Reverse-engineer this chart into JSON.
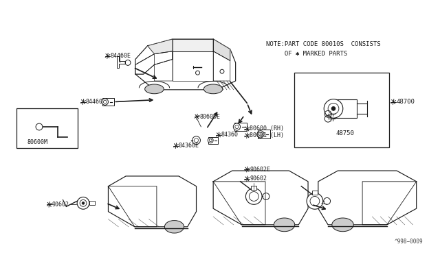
{
  "background_color": "#ffffff",
  "line_color": "#1a1a1a",
  "text_color": "#1a1a1a",
  "note_line1": "NOTE:PART CODE 80010S  CONSISTS",
  "note_line2": "     OF ✱ MARKED PARTS",
  "footer_text": "^998−0009",
  "figsize": [
    6.4,
    3.72
  ],
  "dpi": 100,
  "label_84460E": "✱84460E",
  "label_84460": "✱84460",
  "label_80600E": "✱80600E",
  "label_84360": "✱84360",
  "label_84360E": "✱84360E",
  "label_80600RH": "✱80600 (RH)",
  "label_80601LH": "✱80601 (LH)",
  "label_80600M": "80600M",
  "label_48700": "✱48700",
  "label_48750": "48750",
  "label_90602E": "✱90602E",
  "label_90602a": "✱90602",
  "label_90602b": "✱90602"
}
